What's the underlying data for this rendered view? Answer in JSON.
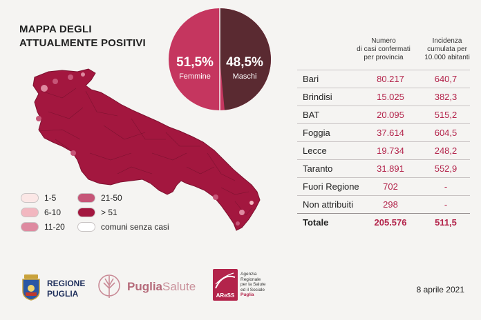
{
  "title": {
    "line1": "MAPPA DEGLI",
    "line2": "ATTUALMENTE POSITIVI"
  },
  "pie": {
    "femmine_pct": "51,5%",
    "femmine_label": "Femmine",
    "maschi_pct": "48,5%",
    "maschi_label": "Maschi",
    "femmine_fraction": 0.515,
    "color_femmine": "#c5365f",
    "color_maschi": "#5a2a31"
  },
  "table": {
    "col1_header": [
      "Numero",
      "di casi confermati",
      "per provincia"
    ],
    "col2_header": [
      "Incidenza",
      "cumulata per",
      "10.000 abitanti"
    ],
    "rows": [
      {
        "name": "Bari",
        "cases": "80.217",
        "incidence": "640,7"
      },
      {
        "name": "Brindisi",
        "cases": "15.025",
        "incidence": "382,3"
      },
      {
        "name": "BAT",
        "cases": "20.095",
        "incidence": "515,2"
      },
      {
        "name": "Foggia",
        "cases": "37.614",
        "incidence": "604,5"
      },
      {
        "name": "Lecce",
        "cases": "19.734",
        "incidence": "248,2"
      },
      {
        "name": "Taranto",
        "cases": "31.891",
        "incidence": "552,9"
      },
      {
        "name": "Fuori Regione",
        "cases": "702",
        "incidence": "-"
      },
      {
        "name": "Non attribuiti",
        "cases": "298",
        "incidence": "-"
      }
    ],
    "total": {
      "name": "Totale",
      "cases": "205.576",
      "incidence": "511,5"
    }
  },
  "legend": [
    {
      "label": "1-5",
      "color": "#fbe7e6"
    },
    {
      "label": "6-10",
      "color": "#f2b7c0"
    },
    {
      "label": "11-20",
      "color": "#de8aa0"
    },
    {
      "label": "21-50",
      "color": "#c65678"
    },
    {
      "label": "> 51",
      "color": "#a3173f"
    },
    {
      "label": "comuni senza casi",
      "color": "#ffffff"
    }
  ],
  "map_colors": {
    "main": "#a3173f",
    "border": "#7d1230"
  },
  "footer": {
    "regione_line1": "REGIONE",
    "regione_line2": "PUGLIA",
    "puglia": "Puglia",
    "salute": "Salute",
    "aress_mark": "AReSS",
    "aress_lines": [
      "Agenzia",
      "Regionale",
      "per la Salute",
      "ed il Sociale",
      "Puglia"
    ],
    "date": "8 aprile 2021"
  }
}
